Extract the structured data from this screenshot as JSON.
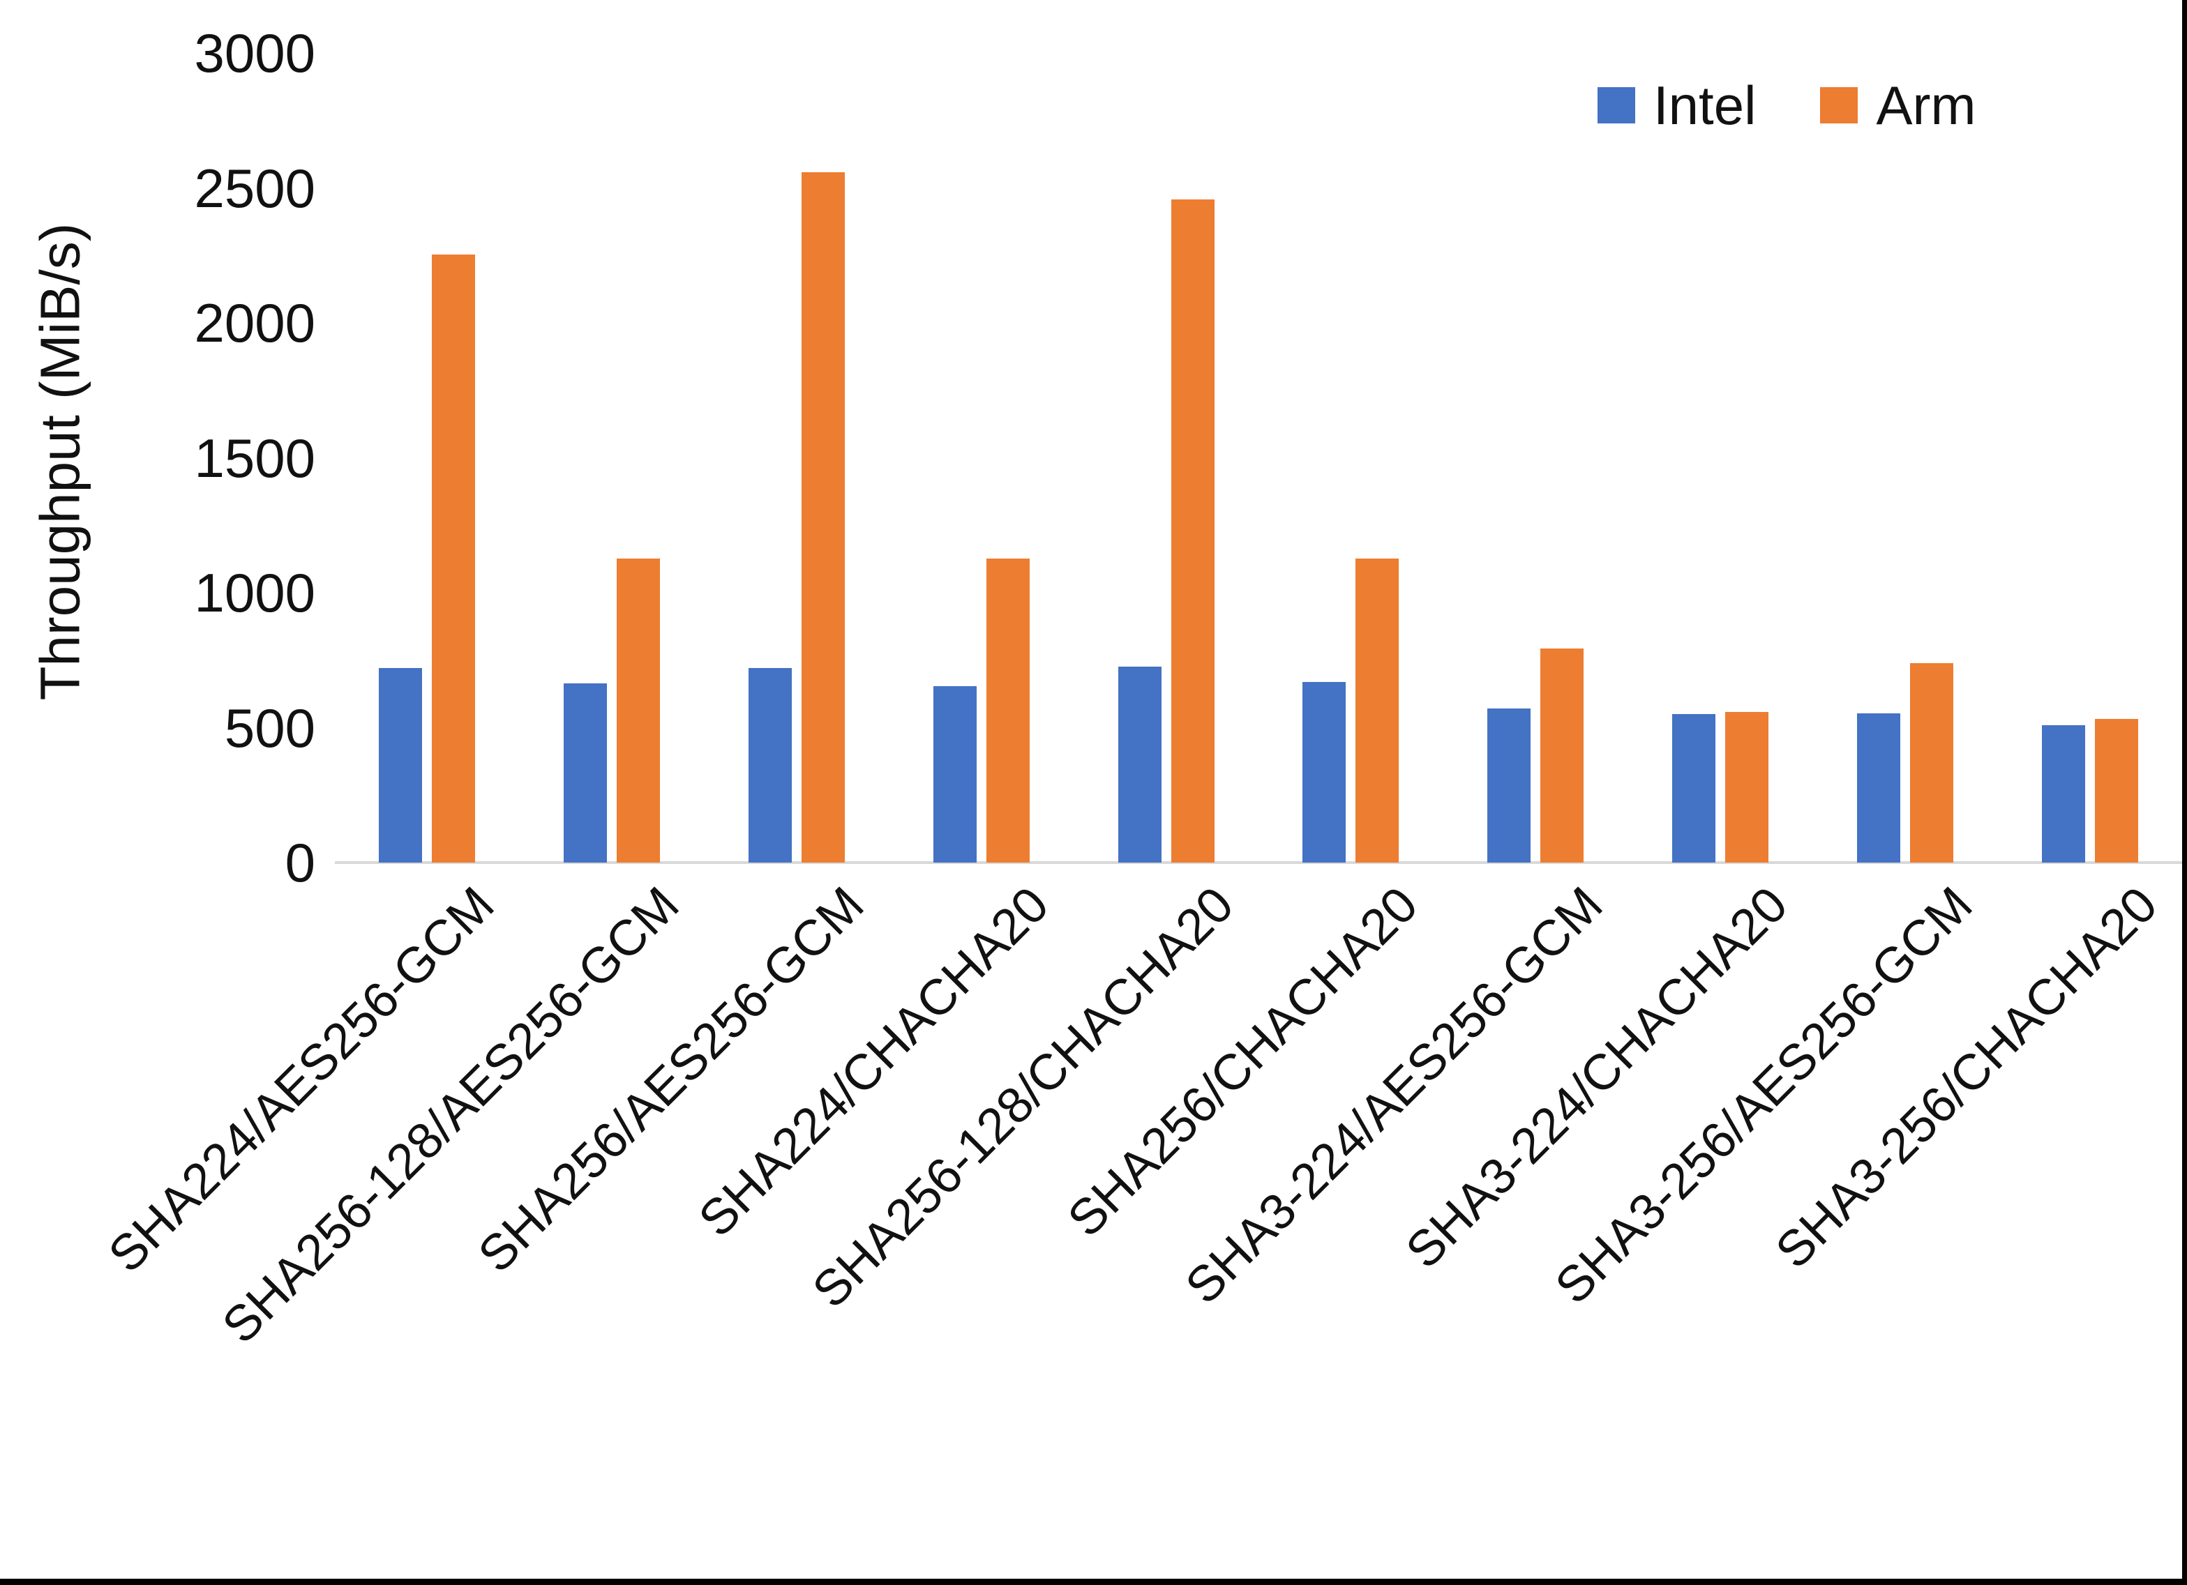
{
  "chart_data": {
    "type": "bar",
    "title": "",
    "xlabel": "",
    "ylabel": "Throughput (MiB/s)",
    "ylim": [
      0,
      3000
    ],
    "yticks": [
      0,
      500,
      1000,
      1500,
      2000,
      2500,
      3000
    ],
    "grid": false,
    "legend_position": "top-right",
    "categories": [
      "SHA224/AES256-GCM",
      "SHA256-128/AES256-GCM",
      "SHA256/AES256-GCM",
      "SHA224/CHACHA20",
      "SHA256-128/CHACHA20",
      "SHA256/CHACHA20",
      "SHA3-224/AES256-GCM",
      "SHA3-224/CHACHA20",
      "SHA3-256/AES256-GCM",
      "SHA3-256/CHACHA20"
    ],
    "series": [
      {
        "name": "Intel",
        "color": "#4472C4",
        "values": [
          722,
          665,
          722,
          655,
          725,
          670,
          572,
          551,
          554,
          510
        ]
      },
      {
        "name": "Arm",
        "color": "#ED7D31",
        "values": [
          2252,
          1126,
          2558,
          1126,
          2457,
          1126,
          792,
          557,
          740,
          533
        ]
      }
    ]
  },
  "frame": {
    "edge_color": "#000000",
    "axis_line_color": "#d9d9d9"
  }
}
